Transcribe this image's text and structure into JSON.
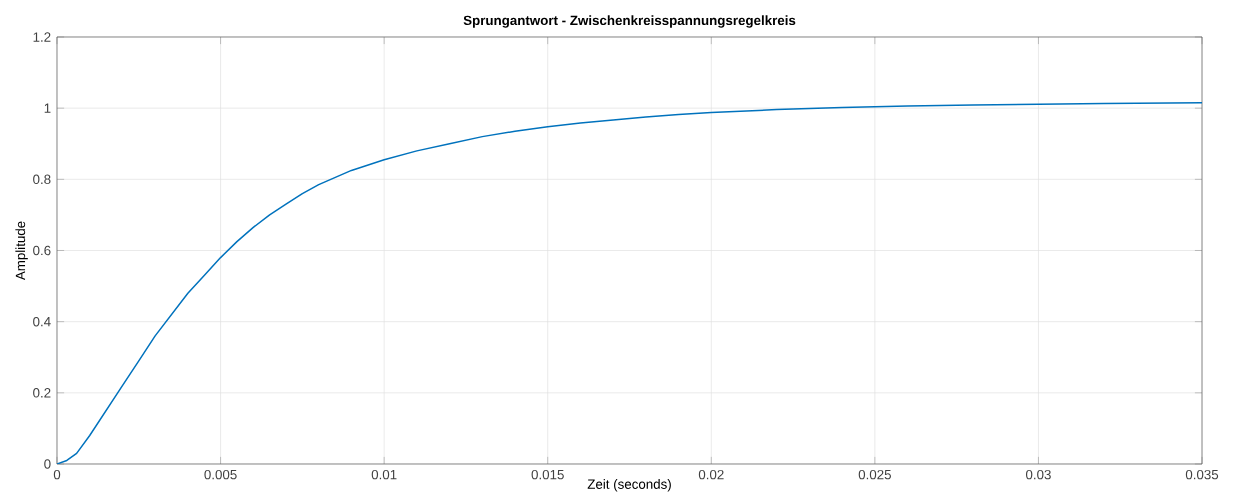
{
  "chart_data": {
    "type": "line",
    "title": "Sprungantwort - Zwischenkreisspannungsregelkreis",
    "xlabel": "Zeit (seconds)",
    "ylabel": "Amplitude",
    "x": [
      0,
      0.0003,
      0.0006,
      0.001,
      0.0015,
      0.002,
      0.0025,
      0.003,
      0.0035,
      0.004,
      0.0045,
      0.005,
      0.0055,
      0.006,
      0.0065,
      0.007,
      0.0075,
      0.008,
      0.0085,
      0.009,
      0.0095,
      0.01,
      0.011,
      0.012,
      0.013,
      0.014,
      0.015,
      0.016,
      0.017,
      0.018,
      0.019,
      0.02,
      0.022,
      0.024,
      0.026,
      0.028,
      0.03,
      0.032,
      0.035
    ],
    "values": [
      0,
      0.01,
      0.03,
      0.08,
      0.15,
      0.22,
      0.29,
      0.36,
      0.42,
      0.48,
      0.53,
      0.58,
      0.625,
      0.665,
      0.7,
      0.73,
      0.76,
      0.785,
      0.805,
      0.825,
      0.84,
      0.855,
      0.88,
      0.9,
      0.92,
      0.935,
      0.948,
      0.958,
      0.967,
      0.975,
      0.982,
      0.988,
      0.996,
      1.002,
      1.006,
      1.009,
      1.011,
      1.013,
      1.015
    ],
    "color": "#0072bd",
    "xlim": [
      0,
      0.035
    ],
    "ylim": [
      0,
      1.2
    ],
    "xticks": [
      0,
      0.005,
      0.01,
      0.015,
      0.02,
      0.025,
      0.03,
      0.035
    ],
    "yticks": [
      0,
      0.2,
      0.4,
      0.6,
      0.8,
      1,
      1.2
    ],
    "grid": true
  }
}
